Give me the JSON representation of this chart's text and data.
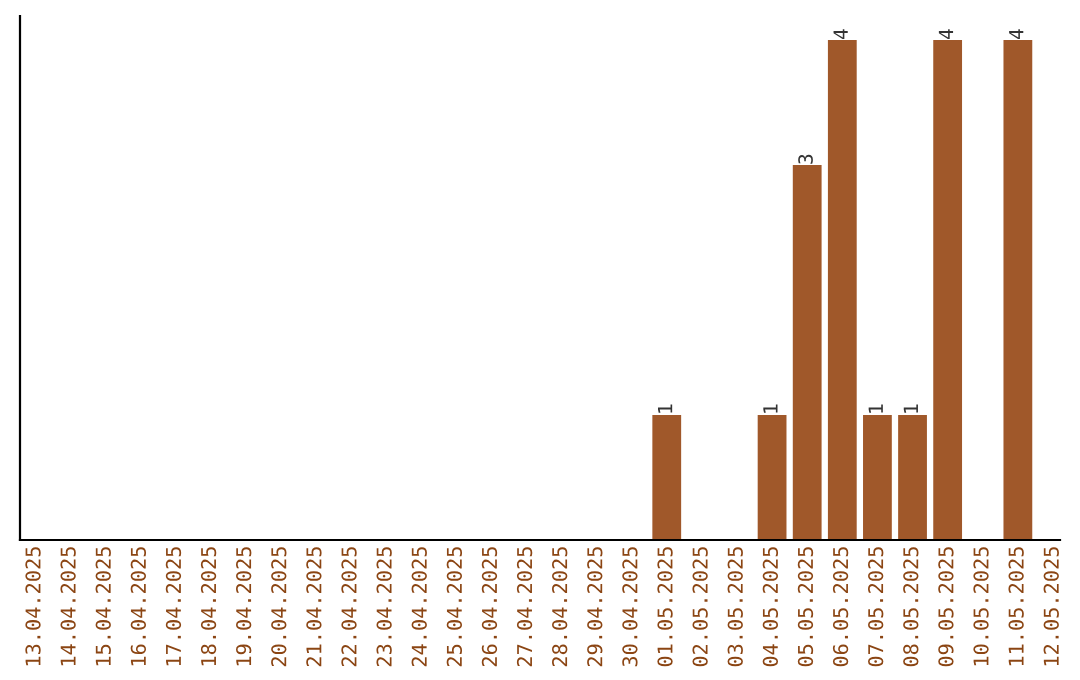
{
  "chart_data": {
    "type": "bar",
    "categories": [
      "13.04.2025",
      "14.04.2025",
      "15.04.2025",
      "16.04.2025",
      "17.04.2025",
      "18.04.2025",
      "19.04.2025",
      "20.04.2025",
      "21.04.2025",
      "22.04.2025",
      "23.04.2025",
      "24.04.2025",
      "25.04.2025",
      "26.04.2025",
      "27.04.2025",
      "28.04.2025",
      "29.04.2025",
      "30.04.2025",
      "01.05.2025",
      "02.05.2025",
      "03.05.2025",
      "04.05.2025",
      "05.05.2025",
      "06.05.2025",
      "07.05.2025",
      "08.05.2025",
      "09.05.2025",
      "10.05.2025",
      "11.05.2025",
      "12.05.2025"
    ],
    "values": [
      null,
      null,
      null,
      null,
      null,
      null,
      null,
      null,
      null,
      null,
      null,
      null,
      null,
      null,
      null,
      null,
      null,
      null,
      1,
      null,
      null,
      1,
      3,
      4,
      1,
      1,
      4,
      null,
      4,
      null
    ],
    "data_labels": true,
    "color": "#a0582a",
    "tick_labels": "x",
    "grid": false,
    "legend": false
  }
}
